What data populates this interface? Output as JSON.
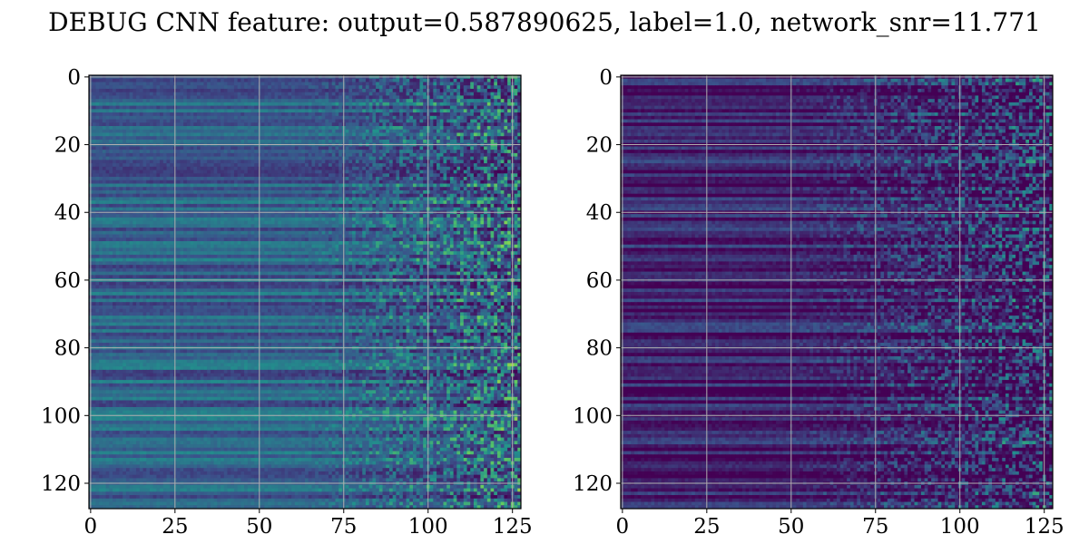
{
  "figure": {
    "title": "DEBUG CNN feature: output=0.587890625, label=1.0, network_snr=11.771"
  },
  "colormap": [
    "#440154",
    "#3b528b",
    "#21918c",
    "#5ec962",
    "#fde725"
  ],
  "chart_data": [
    {
      "type": "heatmap",
      "name": "left",
      "rows": 128,
      "cols": 128,
      "xlim": [
        0,
        127
      ],
      "ylim": [
        127,
        0
      ],
      "x_ticks": [
        0,
        25,
        50,
        75,
        100,
        125
      ],
      "y_ticks": [
        0,
        20,
        40,
        60,
        80,
        100,
        120
      ],
      "grid": true,
      "base_level": 0.32,
      "noise_level": 0.62,
      "noise_start_col": 62
    },
    {
      "type": "heatmap",
      "name": "right",
      "rows": 128,
      "cols": 128,
      "xlim": [
        0,
        127
      ],
      "ylim": [
        127,
        0
      ],
      "x_ticks": [
        0,
        25,
        50,
        75,
        100,
        125
      ],
      "y_ticks": [
        0,
        20,
        40,
        60,
        80,
        100,
        120
      ],
      "grid": true,
      "base_level": 0.1,
      "noise_level": 0.55,
      "noise_start_col": 48
    }
  ]
}
